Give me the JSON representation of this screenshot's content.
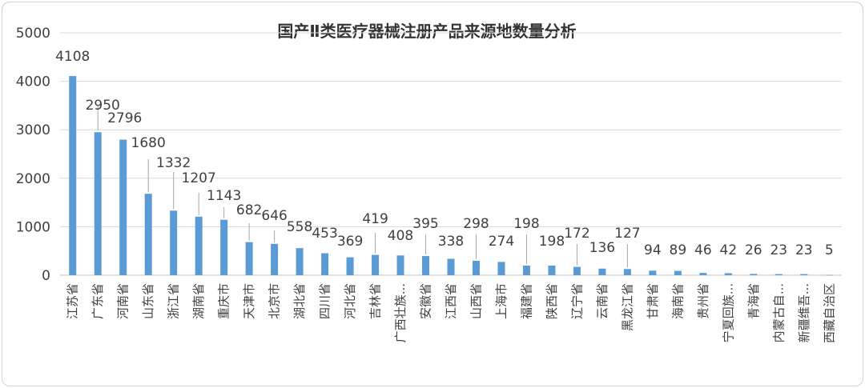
{
  "chart_data": {
    "type": "bar",
    "title": "国产Ⅱ类医疗器械注册产品来源地数量分析",
    "xlabel": "",
    "ylabel": "",
    "ylim": [
      0,
      5000
    ],
    "yticks": [
      0,
      1000,
      2000,
      3000,
      4000,
      5000
    ],
    "grid": true,
    "legend": "none",
    "bar_color": "#5b9bd5",
    "categories": [
      "江苏省",
      "广东省",
      "河南省",
      "山东省",
      "浙江省",
      "湖南省",
      "重庆市",
      "天津市",
      "北京市",
      "湖北省",
      "四川省",
      "河北省",
      "吉林省",
      "广西壮族...",
      "安徽省",
      "江西省",
      "山西省",
      "上海市",
      "福建省",
      "陕西省",
      "辽宁省",
      "云南省",
      "黑龙江省",
      "甘肃省",
      "海南省",
      "贵州省",
      "宁夏回族...",
      "青海省",
      "内蒙古自...",
      "新疆维吾...",
      "西藏自治区"
    ],
    "values": [
      4108,
      2950,
      2796,
      1680,
      1332,
      1207,
      1143,
      682,
      646,
      558,
      453,
      369,
      419,
      408,
      395,
      338,
      298,
      274,
      198,
      198,
      172,
      136,
      127,
      94,
      89,
      46,
      42,
      26,
      23,
      23,
      5
    ]
  }
}
